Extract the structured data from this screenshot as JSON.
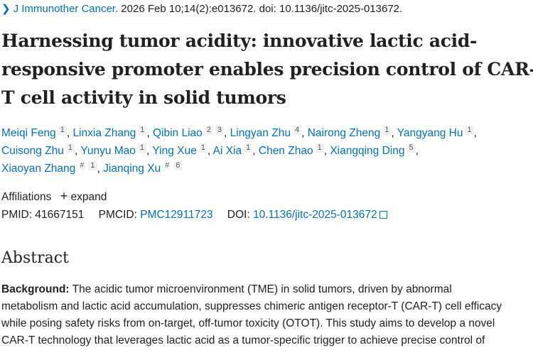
{
  "citation": {
    "journal": "J Immunother Cancer.",
    "rest": " 2026 Feb 10;14(2):e013672. doi: 10.1136/jitc-2025-013672."
  },
  "title": "Harnessing tumor acidity: innovative lactic acid-responsive promoter enables precision control of CAR-T cell activity in solid tumors",
  "authors": [
    {
      "name": "Meiqi Feng",
      "sup": "1"
    },
    {
      "name": "Linxia Zhang",
      "sup": "1"
    },
    {
      "name": "Qibin Liao",
      "sup": "2 3"
    },
    {
      "name": "Lingyan Zhu",
      "sup": "4"
    },
    {
      "name": "Nairong Zheng",
      "sup": "1"
    },
    {
      "name": "Yangyang Hu",
      "sup": "1"
    },
    {
      "name": "Cuisong Zhu",
      "sup": "1"
    },
    {
      "name": "Yunyu Mao",
      "sup": "1"
    },
    {
      "name": "Ying Xue",
      "sup": "1"
    },
    {
      "name": "Ai Xia",
      "sup": "1"
    },
    {
      "name": "Chen Zhao",
      "sup": "1"
    },
    {
      "name": "Xiangqing Ding",
      "sup": "5"
    },
    {
      "name": "Xiaoyan Zhang",
      "sup": "# 1"
    },
    {
      "name": "Jianqing Xu",
      "sup": "# 6"
    }
  ],
  "affiliations": {
    "label": "Affiliations",
    "expand": "expand"
  },
  "ids": {
    "pmid_label": "PMID:",
    "pmid": "41667151",
    "pmcid_label": "PMCID:",
    "pmcid": "PMC12911723",
    "doi_label": "DOI:",
    "doi": "10.1136/jitc-2025-013672"
  },
  "abstract": {
    "heading": "Abstract",
    "background_label": "Background:",
    "lines": [
      " The acidic tumor microenvironment (TME) in solid tumors, driven by abnormal",
      "metabolism and lactic acid accumulation, suppresses chimeric antigen receptor-T (CAR-T) cell efficacy",
      "while posing safety risks from on-target, off-tumor toxicity (OTOT). This study aims to develop a novel",
      "CAR-T technology that leverages lactic acid as a tumor-specific trigger to achieve precise control of"
    ]
  },
  "colors": {
    "link": "#0071bc",
    "text": "#212121"
  }
}
